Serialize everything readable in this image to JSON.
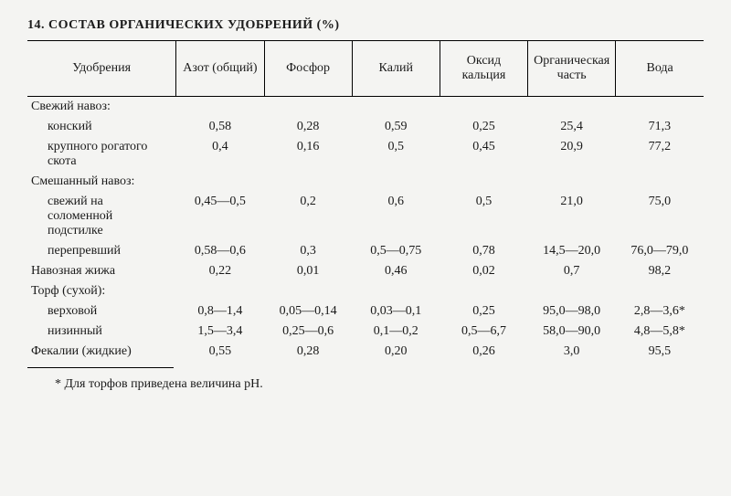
{
  "title": "14. СОСТАВ ОРГАНИЧЕСКИХ УДОБРЕНИЙ (%)",
  "columns": {
    "c0": "Удобрения",
    "c1": "Азот (общий)",
    "c2": "Фосфор",
    "c3": "Калий",
    "c4": "Оксид кальция",
    "c5": "Органи­ческая часть",
    "c6": "Вода"
  },
  "sections": {
    "s1": "Свежий навоз:",
    "s2": "Смешанный навоз:",
    "s3": "Торф (сухой):"
  },
  "rows": {
    "r1": {
      "label": "конский",
      "n": "0,58",
      "p": "0,28",
      "k": "0,59",
      "ca": "0,25",
      "org": "25,4",
      "water": "71,3"
    },
    "r2": {
      "label": "крупного ро­гатого скота",
      "n": "0,4",
      "p": "0,16",
      "k": "0,5",
      "ca": "0,45",
      "org": "20,9",
      "water": "77,2"
    },
    "r3": {
      "label": "свежий на соломенной подстилке",
      "n": "0,45—0,5",
      "p": "0,2",
      "k": "0,6",
      "ca": "0,5",
      "org": "21,0",
      "water": "75,0"
    },
    "r4": {
      "label": "перепревший",
      "n": "0,58—0,6",
      "p": "0,3",
      "k": "0,5—0,75",
      "ca": "0,78",
      "org": "14,5—20,0",
      "water": "76,0—79,0"
    },
    "r5": {
      "label": "Навозная жижа",
      "n": "0,22",
      "p": "0,01",
      "k": "0,46",
      "ca": "0,02",
      "org": "0,7",
      "water": "98,2"
    },
    "r6": {
      "label": "верховой",
      "n": "0,8—1,4",
      "p": "0,05—0,14",
      "k": "0,03—0,1",
      "ca": "0,25",
      "org": "95,0—98,0",
      "water": "2,8—3,6*"
    },
    "r7": {
      "label": "низинный",
      "n": "1,5—3,4",
      "p": "0,25—0,6",
      "k": "0,1—0,2",
      "ca": "0,5—6,7",
      "org": "58,0—90,0",
      "water": "4,8—5,8*"
    },
    "r8": {
      "label": "Фекалии (жидкие)",
      "n": "0,55",
      "p": "0,28",
      "k": "0,20",
      "ca": "0,26",
      "org": "3,0",
      "water": "95,5"
    }
  },
  "footnote": "* Для торфов приведена величина pH."
}
